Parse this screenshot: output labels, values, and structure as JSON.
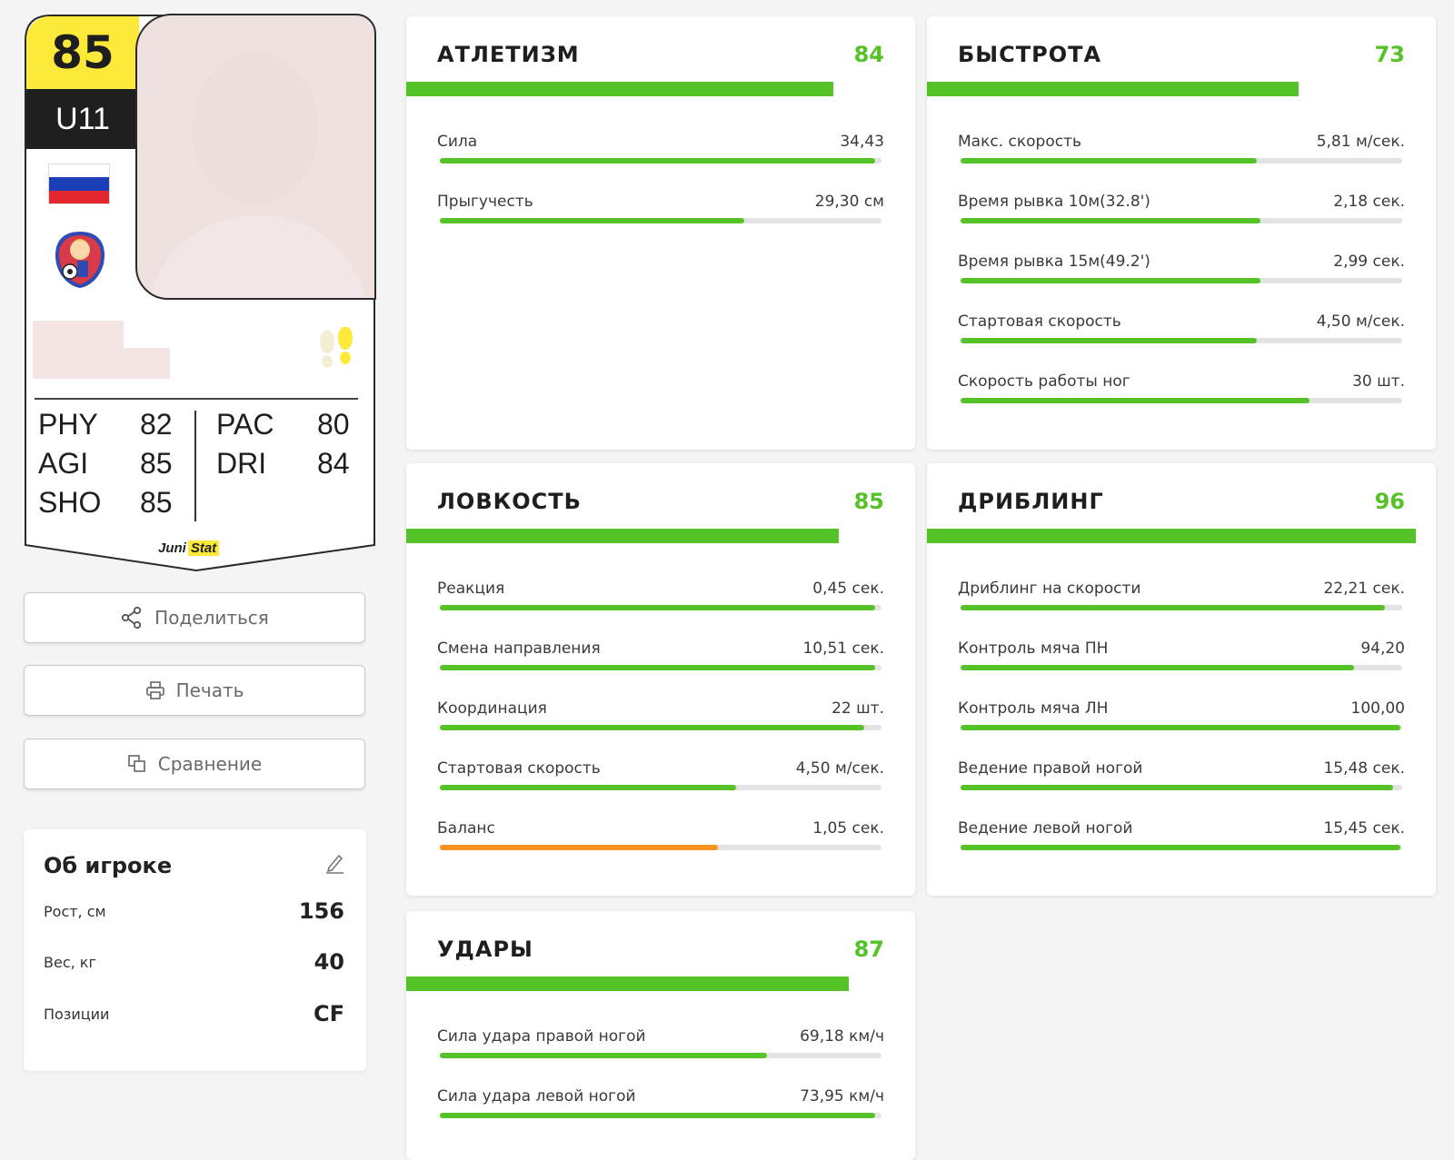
{
  "player_card": {
    "rating": "85",
    "age_group": "U11",
    "stats": [
      {
        "code": "PHY",
        "value": "82"
      },
      {
        "code": "AGI",
        "value": "85"
      },
      {
        "code": "SHO",
        "value": "85"
      },
      {
        "code": "PAC",
        "value": "80"
      },
      {
        "code": "DRI",
        "value": "84"
      }
    ],
    "brand_juni": "Juni",
    "brand_stat": "Stat"
  },
  "actions": {
    "share_label": "Поделиться",
    "print_label": "Печать",
    "compare_label": "Сравнение"
  },
  "about": {
    "title": "Об игроке",
    "rows": [
      {
        "label": "Рост, см",
        "value": "156"
      },
      {
        "label": "Вес, кг",
        "value": "40"
      },
      {
        "label": "Позиции",
        "value": "CF"
      }
    ]
  },
  "colors": {
    "accent_green": "#55c228",
    "warning_orange": "#f7941d",
    "card_yellow": "#fde93a"
  },
  "panels": [
    {
      "title": "АТЛЕТИЗМ",
      "score": "84",
      "score_fraction": 0.84,
      "metrics": [
        {
          "label": "Сила",
          "value": "34,43",
          "fill": 0.985,
          "color": "green"
        },
        {
          "label": "Прыгучесть",
          "value": "29,30 см",
          "fill": 0.69,
          "color": "green"
        }
      ]
    },
    {
      "title": "БЫСТРОТА",
      "score": "73",
      "score_fraction": 0.73,
      "metrics": [
        {
          "label": "Макс. скорость",
          "value": "5,81 м/сек.",
          "fill": 0.67,
          "color": "green"
        },
        {
          "label": "Время рывка 10м(32.8')",
          "value": "2,18 сек.",
          "fill": 0.68,
          "color": "green"
        },
        {
          "label": "Время рывка 15м(49.2')",
          "value": "2,99 сек.",
          "fill": 0.68,
          "color": "green"
        },
        {
          "label": "Стартовая скорость",
          "value": "4,50 м/сек.",
          "fill": 0.67,
          "color": "green"
        },
        {
          "label": "Скорость работы ног",
          "value": "30 шт.",
          "fill": 0.79,
          "color": "green"
        }
      ]
    },
    {
      "title": "ЛОВКОСТЬ",
      "score": "85",
      "score_fraction": 0.85,
      "metrics": [
        {
          "label": "Реакция",
          "value": "0,45 сек.",
          "fill": 0.985,
          "color": "green"
        },
        {
          "label": "Смена направления",
          "value": "10,51 сек.",
          "fill": 0.985,
          "color": "green"
        },
        {
          "label": "Координация",
          "value": "22 шт.",
          "fill": 0.96,
          "color": "green"
        },
        {
          "label": "Стартовая скорость",
          "value": "4,50 м/сек.",
          "fill": 0.67,
          "color": "green"
        },
        {
          "label": "Баланс",
          "value": "1,05 сек.",
          "fill": 0.63,
          "color": "orange"
        }
      ]
    },
    {
      "title": "ДРИБЛИНГ",
      "score": "96",
      "score_fraction": 0.96,
      "metrics": [
        {
          "label": "Дриблинг на скорости",
          "value": "22,21 сек.",
          "fill": 0.96,
          "color": "green"
        },
        {
          "label": "Контроль мяча ПН",
          "value": "94,20",
          "fill": 0.89,
          "color": "green"
        },
        {
          "label": "Контроль мяча ЛН",
          "value": "100,00",
          "fill": 0.995,
          "color": "green"
        },
        {
          "label": "Ведение правой ногой",
          "value": "15,48 сек.",
          "fill": 0.98,
          "color": "green"
        },
        {
          "label": "Ведение левой ногой",
          "value": "15,45 сек.",
          "fill": 0.995,
          "color": "green"
        }
      ]
    },
    {
      "title": "УДАРЫ",
      "score": "87",
      "score_fraction": 0.87,
      "metrics": [
        {
          "label": "Сила удара правой ногой",
          "value": "69,18 км/ч",
          "fill": 0.74,
          "color": "green"
        },
        {
          "label": "Сила удара левой ногой",
          "value": "73,95 км/ч",
          "fill": 0.985,
          "color": "green"
        }
      ]
    }
  ]
}
